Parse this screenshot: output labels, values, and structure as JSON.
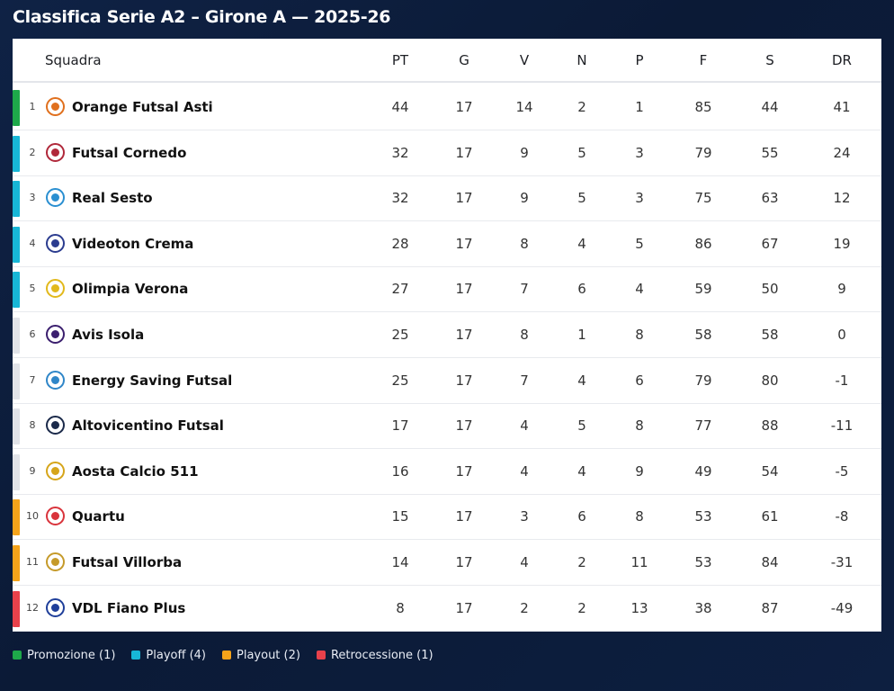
{
  "title": "Classifica Serie A2 – Girone A — 2025-26",
  "columns": {
    "team": "Squadra",
    "pt": "PT",
    "g": "G",
    "v": "V",
    "n": "N",
    "p": "P",
    "f": "F",
    "s": "S",
    "dr": "DR"
  },
  "zone_colors": {
    "promozione": "#1ea84a",
    "playoff": "#17b6d6",
    "none": "#e1e3e8",
    "playout": "#f5a31a",
    "retrocessione": "#e8414b"
  },
  "rows": [
    {
      "pos": "1",
      "team": "Orange Futsal Asti",
      "pt": "44",
      "g": "17",
      "v": "14",
      "n": "2",
      "p": "1",
      "f": "85",
      "s": "44",
      "dr": "41",
      "zone": "promozione",
      "logo_icon": "orange-futsal-asti-crest-icon",
      "logo_color": "#e0701e"
    },
    {
      "pos": "2",
      "team": "Futsal Cornedo",
      "pt": "32",
      "g": "17",
      "v": "9",
      "n": "5",
      "p": "3",
      "f": "79",
      "s": "55",
      "dr": "24",
      "zone": "playoff",
      "logo_icon": "futsal-cornedo-crest-icon",
      "logo_color": "#b0283a"
    },
    {
      "pos": "3",
      "team": "Real Sesto",
      "pt": "32",
      "g": "17",
      "v": "9",
      "n": "5",
      "p": "3",
      "f": "75",
      "s": "63",
      "dr": "12",
      "zone": "playoff",
      "logo_icon": "real-sesto-crest-icon",
      "logo_color": "#2a8fd1"
    },
    {
      "pos": "4",
      "team": "Videoton Crema",
      "pt": "28",
      "g": "17",
      "v": "8",
      "n": "4",
      "p": "5",
      "f": "86",
      "s": "67",
      "dr": "19",
      "zone": "playoff",
      "logo_icon": "videoton-crema-crest-icon",
      "logo_color": "#2b3c8f"
    },
    {
      "pos": "5",
      "team": "Olimpia Verona",
      "pt": "27",
      "g": "17",
      "v": "7",
      "n": "6",
      "p": "4",
      "f": "59",
      "s": "50",
      "dr": "9",
      "zone": "playoff",
      "logo_icon": "olimpia-verona-crest-icon",
      "logo_color": "#e2b91c"
    },
    {
      "pos": "6",
      "team": "Avis Isola",
      "pt": "25",
      "g": "17",
      "v": "8",
      "n": "1",
      "p": "8",
      "f": "58",
      "s": "58",
      "dr": "0",
      "zone": "none",
      "logo_icon": "avis-isola-crest-icon",
      "logo_color": "#3b1f6e"
    },
    {
      "pos": "7",
      "team": "Energy Saving Futsal",
      "pt": "25",
      "g": "17",
      "v": "7",
      "n": "4",
      "p": "6",
      "f": "79",
      "s": "80",
      "dr": "-1",
      "zone": "none",
      "logo_icon": "energy-saving-futsal-crest-icon",
      "logo_color": "#2f86c8"
    },
    {
      "pos": "8",
      "team": "Altovicentino Futsal",
      "pt": "17",
      "g": "17",
      "v": "4",
      "n": "5",
      "p": "8",
      "f": "77",
      "s": "88",
      "dr": "-11",
      "zone": "none",
      "logo_icon": "altovicentino-futsal-crest-icon",
      "logo_color": "#1b2a4a"
    },
    {
      "pos": "9",
      "team": "Aosta Calcio 511",
      "pt": "16",
      "g": "17",
      "v": "4",
      "n": "4",
      "p": "9",
      "f": "49",
      "s": "54",
      "dr": "-5",
      "zone": "none",
      "logo_icon": "aosta-calcio-511-crest-icon",
      "logo_color": "#d6a51a"
    },
    {
      "pos": "10",
      "team": "Quartu",
      "pt": "15",
      "g": "17",
      "v": "3",
      "n": "6",
      "p": "8",
      "f": "53",
      "s": "61",
      "dr": "-8",
      "zone": "playout",
      "logo_icon": "quartu-crest-icon",
      "logo_color": "#d9343c"
    },
    {
      "pos": "11",
      "team": "Futsal Villorba",
      "pt": "14",
      "g": "17",
      "v": "4",
      "n": "2",
      "p": "11",
      "f": "53",
      "s": "84",
      "dr": "-31",
      "zone": "playout",
      "logo_icon": "futsal-villorba-crest-icon",
      "logo_color": "#c59a2a"
    },
    {
      "pos": "12",
      "team": "VDL Fiano Plus",
      "pt": "8",
      "g": "17",
      "v": "2",
      "n": "2",
      "p": "13",
      "f": "38",
      "s": "87",
      "dr": "-49",
      "zone": "retrocessione",
      "logo_icon": "vdl-fiano-plus-crest-icon",
      "logo_color": "#1f3f9a"
    }
  ],
  "legend": [
    {
      "label": "Promozione (1)",
      "zone": "promozione"
    },
    {
      "label": "Playoff (4)",
      "zone": "playoff"
    },
    {
      "label": "Playout (2)",
      "zone": "playout"
    },
    {
      "label": "Retrocessione (1)",
      "zone": "retrocessione"
    }
  ]
}
